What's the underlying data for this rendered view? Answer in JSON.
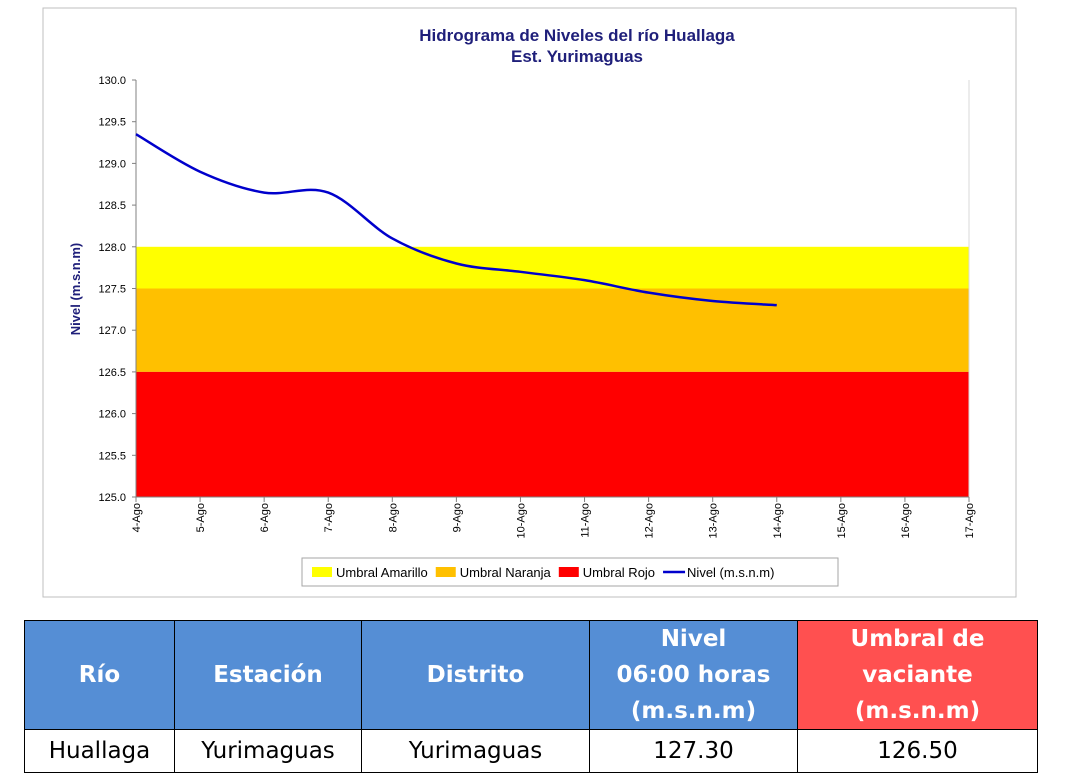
{
  "chart_data": {
    "type": "line",
    "title": "Hidrograma de Niveles del río Huallaga",
    "subtitle": "Est. Yurimaguas",
    "y_label": "Nivel (m.s.n.m)",
    "categories": [
      "4-Ago",
      "5-Ago",
      "6-Ago",
      "7-Ago",
      "8-Ago",
      "9-Ago",
      "10-Ago",
      "11-Ago",
      "12-Ago",
      "13-Ago",
      "14-Ago",
      "15-Ago",
      "16-Ago",
      "17-Ago"
    ],
    "bands": [
      {
        "name": "Umbral Amarillo",
        "color": "#ffff00",
        "from": 127.5,
        "to": 128.0
      },
      {
        "name": "Umbral Naranja",
        "color": "#ffc000",
        "from": 126.5,
        "to": 127.5
      },
      {
        "name": "Umbral Rojo",
        "color": "#ff0000",
        "from": 125.0,
        "to": 126.5
      }
    ],
    "series": [
      {
        "name": "Nivel (m.s.n.m)",
        "color": "#0000cc",
        "values": [
          129.35,
          128.9,
          128.65,
          128.65,
          128.1,
          127.8,
          127.7,
          127.6,
          127.45,
          127.35,
          127.3,
          null,
          null,
          null
        ]
      }
    ],
    "ylim": [
      125,
      130
    ],
    "yticks": [
      {
        "value": 125,
        "label": "125.0"
      },
      125.5,
      {
        "value": 126,
        "label": "126.0"
      },
      126.5,
      {
        "value": 127,
        "label": "127.0"
      },
      127.5,
      {
        "value": 128,
        "label": "128.0"
      },
      128.5,
      {
        "value": 129,
        "label": "129.0"
      },
      129.5,
      {
        "value": 130,
        "label": "130.0"
      }
    ],
    "legend": "bottom"
  },
  "table": {
    "header": [
      "Río",
      "Estación",
      "Distrito",
      [
        "Nivel",
        "06:00 horas",
        "(m.s.n.m)"
      ],
      [
        "Umbral de",
        "vaciante",
        "(m.s.n.m)"
      ]
    ],
    "rows": [
      [
        "Huallaga",
        "Yurimaguas",
        "Yurimaguas",
        "127.30",
        "126.50"
      ]
    ]
  }
}
